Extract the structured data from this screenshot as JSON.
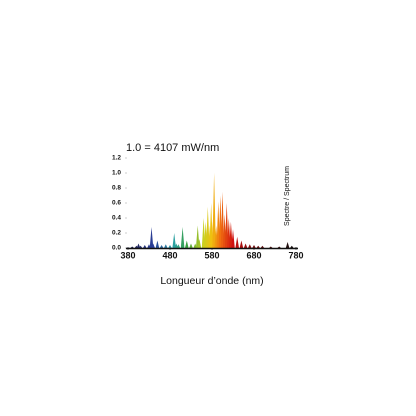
{
  "chart_data": {
    "type": "spectrum",
    "title": "1.0 = 4107 mW/nm",
    "x_label": "Longueur d’onde (nm)",
    "y_label": "Spectre / Spectrum",
    "x": [
      380,
      390,
      400,
      405,
      410,
      420,
      430,
      436,
      440,
      450,
      460,
      470,
      480,
      490,
      495,
      500,
      510,
      520,
      530,
      540,
      546,
      550,
      560,
      565,
      570,
      575,
      578,
      580,
      585,
      590,
      595,
      600,
      605,
      610,
      615,
      620,
      625,
      630,
      640,
      650,
      660,
      670,
      680,
      690,
      700,
      720,
      740,
      760,
      770,
      780
    ],
    "values": [
      0.01,
      0.02,
      0.03,
      0.06,
      0.03,
      0.04,
      0.05,
      0.28,
      0.06,
      0.1,
      0.04,
      0.05,
      0.04,
      0.2,
      0.06,
      0.05,
      0.28,
      0.1,
      0.06,
      0.06,
      0.3,
      0.12,
      0.4,
      0.35,
      0.55,
      0.3,
      0.6,
      0.35,
      1.0,
      0.3,
      0.62,
      0.7,
      0.75,
      0.45,
      0.6,
      0.4,
      0.35,
      0.25,
      0.15,
      0.1,
      0.06,
      0.05,
      0.04,
      0.03,
      0.03,
      0.02,
      0.02,
      0.08,
      0.03,
      0.01
    ],
    "color_stops": [
      {
        "x": 380,
        "color": "#1a1a3a"
      },
      {
        "x": 440,
        "color": "#2b3f9a"
      },
      {
        "x": 490,
        "color": "#2aa0a0"
      },
      {
        "x": 520,
        "color": "#3aa040"
      },
      {
        "x": 560,
        "color": "#c8d020"
      },
      {
        "x": 580,
        "color": "#f0c010"
      },
      {
        "x": 600,
        "color": "#f07010"
      },
      {
        "x": 630,
        "color": "#d01010"
      },
      {
        "x": 680,
        "color": "#701010"
      },
      {
        "x": 780,
        "color": "#111111"
      }
    ],
    "xlim": [
      380,
      780
    ],
    "xticks": [
      380,
      480,
      580,
      680,
      780
    ],
    "ylim": [
      0,
      1.2
    ],
    "yticks": [
      {
        "value": 0,
        "label": "0.0"
      },
      0.2,
      0.4,
      0.6,
      0.8,
      {
        "value": 1,
        "label": "1.0"
      },
      1.2
    ],
    "grid": false
  }
}
